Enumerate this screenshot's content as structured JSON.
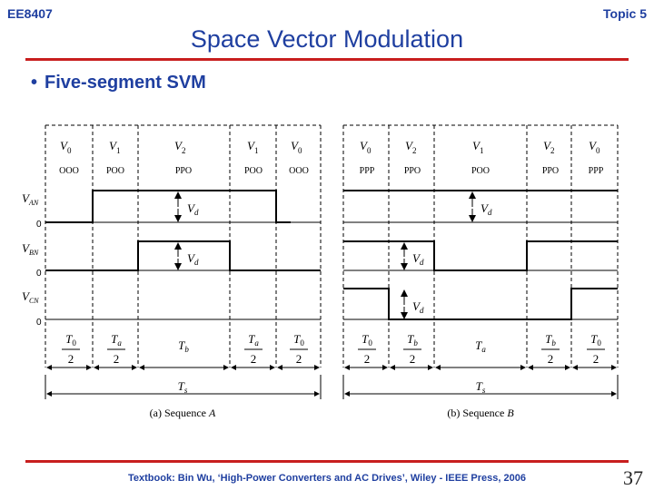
{
  "header": {
    "course": "EE8407",
    "topic": "Topic 5",
    "title": "Space Vector Modulation"
  },
  "bullet": {
    "marker": "•",
    "text": "Five-segment SVM"
  },
  "diagram": {
    "sequence_a": {
      "caption_prefix": "(a)  Sequence ",
      "caption_letter": "A",
      "vectors": [
        {
          "base": "V",
          "sub": "0",
          "state": "OOO",
          "time_num": "T",
          "time_sub": "0",
          "time_den": "2"
        },
        {
          "base": "V",
          "sub": "1",
          "state": "POO",
          "time_num": "T",
          "time_sub": "a",
          "time_den": "2"
        },
        {
          "base": "V",
          "sub": "2",
          "state": "PPO",
          "time_num": "T",
          "time_sub": "b",
          "time_den": ""
        },
        {
          "base": "V",
          "sub": "1",
          "state": "POO",
          "time_num": "T",
          "time_sub": "a",
          "time_den": "2"
        },
        {
          "base": "V",
          "sub": "0",
          "state": "OOO",
          "time_num": "T",
          "time_sub": "0",
          "time_den": "2"
        }
      ],
      "vd_labels": [
        {
          "base": "V",
          "sub": "d"
        },
        {
          "base": "V",
          "sub": "d"
        }
      ],
      "total": {
        "base": "T",
        "sub": "s"
      }
    },
    "sequence_b": {
      "caption_prefix": "(b)  Sequence ",
      "caption_letter": "B",
      "vectors": [
        {
          "base": "V",
          "sub": "0",
          "state": "PPP",
          "time_num": "T",
          "time_sub": "0",
          "time_den": "2"
        },
        {
          "base": "V",
          "sub": "2",
          "state": "PPO",
          "time_num": "T",
          "time_sub": "b",
          "time_den": "2"
        },
        {
          "base": "V",
          "sub": "1",
          "state": "POO",
          "time_num": "T",
          "time_sub": "a",
          "time_den": ""
        },
        {
          "base": "V",
          "sub": "2",
          "state": "PPO",
          "time_num": "T",
          "time_sub": "b",
          "time_den": "2"
        },
        {
          "base": "V",
          "sub": "0",
          "state": "PPP",
          "time_num": "T",
          "time_sub": "0",
          "time_den": "2"
        }
      ],
      "vd_labels": [
        {
          "base": "V",
          "sub": "d"
        },
        {
          "base": "V",
          "sub": "d"
        },
        {
          "base": "V",
          "sub": "d"
        }
      ],
      "total": {
        "base": "T",
        "sub": "s"
      }
    },
    "waveforms": [
      {
        "base": "V",
        "sub": "AN",
        "zero": "0"
      },
      {
        "base": "V",
        "sub": "BN",
        "zero": "0"
      },
      {
        "base": "V",
        "sub": "CN",
        "zero": "0"
      }
    ]
  },
  "footer": {
    "text": "Textbook: Bin Wu, ‘High-Power Converters and AC Drives’, Wiley - IEEE Press, 2006",
    "page": "37"
  }
}
